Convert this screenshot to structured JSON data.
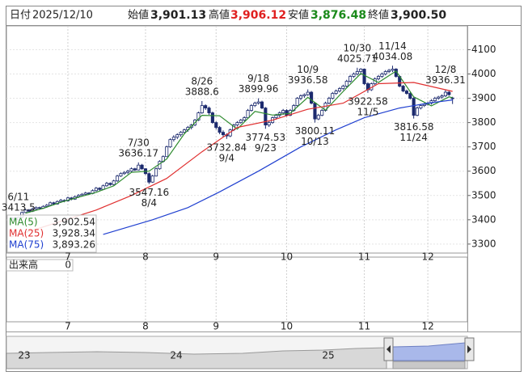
{
  "chart_data": {
    "type": "candlestick",
    "header": {
      "date_label": "日付",
      "date": "2025/12/10",
      "open_label": "始値",
      "open": "3,901.13",
      "high_label": "高値",
      "high": "3,906.12",
      "low_label": "安値",
      "low": "3,876.48",
      "close_label": "終値",
      "close": "3,900.50"
    },
    "up_color": "#ffffff",
    "down_color": "#1c2a6e",
    "candles": [
      [
        3405,
        3412,
        3398,
        3408
      ],
      [
        3408,
        3411,
        3396,
        3400
      ],
      [
        3400,
        3413.5,
        3397,
        3410
      ],
      [
        3410,
        3434,
        3406,
        3430
      ],
      [
        3430,
        3445,
        3428,
        3440
      ],
      [
        3440,
        3444,
        3430,
        3435
      ],
      [
        3435,
        3450,
        3432,
        3445
      ],
      [
        3445,
        3455,
        3440,
        3450
      ],
      [
        3450,
        3454,
        3442,
        3448
      ],
      [
        3448,
        3460,
        3445,
        3455
      ],
      [
        3455,
        3465,
        3450,
        3460
      ],
      [
        3460,
        3475,
        3456,
        3470
      ],
      [
        3470,
        3474,
        3460,
        3465
      ],
      [
        3465,
        3480,
        3462,
        3475
      ],
      [
        3475,
        3486,
        3470,
        3480
      ],
      [
        3480,
        3484,
        3472,
        3478
      ],
      [
        3478,
        3495,
        3475,
        3490
      ],
      [
        3490,
        3494,
        3480,
        3485
      ],
      [
        3485,
        3500,
        3482,
        3495
      ],
      [
        3495,
        3506,
        3490,
        3500
      ],
      [
        3500,
        3510,
        3496,
        3505
      ],
      [
        3505,
        3515,
        3500,
        3510
      ],
      [
        3510,
        3514,
        3502,
        3508
      ],
      [
        3508,
        3525,
        3505,
        3520
      ],
      [
        3520,
        3535,
        3516,
        3530
      ],
      [
        3530,
        3534,
        3520,
        3525
      ],
      [
        3525,
        3545,
        3522,
        3540
      ],
      [
        3540,
        3556,
        3536,
        3550
      ],
      [
        3550,
        3554,
        3540,
        3545
      ],
      [
        3545,
        3565,
        3542,
        3560
      ],
      [
        3560,
        3585,
        3556,
        3580
      ],
      [
        3580,
        3595,
        3576,
        3590
      ],
      [
        3590,
        3600,
        3585,
        3595
      ],
      [
        3595,
        3606,
        3588,
        3600
      ],
      [
        3600,
        3615,
        3596,
        3610
      ],
      [
        3610,
        3614,
        3600,
        3605
      ],
      [
        3605,
        3636.17,
        3602,
        3625
      ],
      [
        3625,
        3630,
        3605,
        3610
      ],
      [
        3610,
        3612,
        3585,
        3590
      ],
      [
        3590,
        3595,
        3547.16,
        3555
      ],
      [
        3555,
        3585,
        3552,
        3580
      ],
      [
        3580,
        3615,
        3578,
        3610
      ],
      [
        3610,
        3645,
        3606,
        3640
      ],
      [
        3640,
        3665,
        3635,
        3660
      ],
      [
        3660,
        3705,
        3658,
        3700
      ],
      [
        3700,
        3735,
        3696,
        3730
      ],
      [
        3730,
        3748,
        3722,
        3740
      ],
      [
        3740,
        3756,
        3732,
        3750
      ],
      [
        3750,
        3765,
        3742,
        3760
      ],
      [
        3760,
        3775,
        3752,
        3770
      ],
      [
        3770,
        3786,
        3762,
        3780
      ],
      [
        3780,
        3795,
        3772,
        3790
      ],
      [
        3790,
        3815,
        3785,
        3810
      ],
      [
        3810,
        3845,
        3806,
        3840
      ],
      [
        3840,
        3888.6,
        3836,
        3870
      ],
      [
        3870,
        3875,
        3852,
        3860
      ],
      [
        3860,
        3866,
        3832,
        3840
      ],
      [
        3840,
        3845,
        3795,
        3800
      ],
      [
        3800,
        3805,
        3772,
        3780
      ],
      [
        3780,
        3786,
        3752,
        3760
      ],
      [
        3760,
        3768,
        3740,
        3750
      ],
      [
        3750,
        3756,
        3732.84,
        3745
      ],
      [
        3745,
        3775,
        3740,
        3770
      ],
      [
        3770,
        3795,
        3765,
        3790
      ],
      [
        3790,
        3806,
        3784,
        3800
      ],
      [
        3800,
        3815,
        3795,
        3810
      ],
      [
        3810,
        3826,
        3804,
        3820
      ],
      [
        3820,
        3856,
        3816,
        3850
      ],
      [
        3850,
        3876,
        3845,
        3870
      ],
      [
        3870,
        3886,
        3864,
        3880
      ],
      [
        3880,
        3899.96,
        3874,
        3885
      ],
      [
        3885,
        3890,
        3855,
        3860
      ],
      [
        3860,
        3864,
        3774.53,
        3790
      ],
      [
        3790,
        3806,
        3782,
        3800
      ],
      [
        3800,
        3825,
        3795,
        3820
      ],
      [
        3820,
        3836,
        3812,
        3830
      ],
      [
        3830,
        3846,
        3822,
        3840
      ],
      [
        3840,
        3856,
        3832,
        3850
      ],
      [
        3850,
        3855,
        3825,
        3830
      ],
      [
        3830,
        3856,
        3826,
        3850
      ],
      [
        3850,
        3876,
        3845,
        3870
      ],
      [
        3870,
        3905,
        3866,
        3900
      ],
      [
        3900,
        3916,
        3892,
        3910
      ],
      [
        3910,
        3920,
        3902,
        3915
      ],
      [
        3915,
        3936.58,
        3910,
        3925
      ],
      [
        3925,
        3930,
        3875,
        3880
      ],
      [
        3880,
        3885,
        3800.11,
        3815
      ],
      [
        3815,
        3836,
        3810,
        3830
      ],
      [
        3830,
        3856,
        3826,
        3850
      ],
      [
        3850,
        3886,
        3845,
        3880
      ],
      [
        3880,
        3906,
        3875,
        3900
      ],
      [
        3900,
        3926,
        3895,
        3920
      ],
      [
        3920,
        3936,
        3914,
        3930
      ],
      [
        3930,
        3946,
        3924,
        3940
      ],
      [
        3940,
        3956,
        3934,
        3950
      ],
      [
        3950,
        3976,
        3944,
        3970
      ],
      [
        3970,
        3996,
        3964,
        3990
      ],
      [
        3990,
        4006,
        3984,
        4000
      ],
      [
        4000,
        4025.71,
        3994,
        4010
      ],
      [
        4010,
        4024,
        3996,
        4020
      ],
      [
        4020,
        4022,
        3955,
        3960
      ],
      [
        3960,
        3966,
        3922.58,
        3935
      ],
      [
        3935,
        3965,
        3930,
        3960
      ],
      [
        3960,
        3986,
        3954,
        3980
      ],
      [
        3980,
        3996,
        3974,
        3990
      ],
      [
        3990,
        4006,
        3984,
        4000
      ],
      [
        4000,
        4016,
        3994,
        4010
      ],
      [
        4010,
        4021,
        4004,
        4015
      ],
      [
        4015,
        4034.08,
        4008,
        4020
      ],
      [
        4020,
        4024,
        3985,
        3990
      ],
      [
        3990,
        3994,
        3945,
        3950
      ],
      [
        3950,
        3955,
        3925,
        3930
      ],
      [
        3930,
        3936,
        3915,
        3920
      ],
      [
        3920,
        3926,
        3895,
        3900
      ],
      [
        3900,
        3905,
        3816.58,
        3830
      ],
      [
        3830,
        3866,
        3826,
        3860
      ],
      [
        3860,
        3876,
        3854,
        3870
      ],
      [
        3870,
        3880,
        3864,
        3875
      ],
      [
        3875,
        3886,
        3870,
        3880
      ],
      [
        3880,
        3896,
        3874,
        3890
      ],
      [
        3890,
        3906,
        3884,
        3900
      ],
      [
        3900,
        3910,
        3894,
        3905
      ],
      [
        3905,
        3916,
        3898,
        3910
      ],
      [
        3910,
        3936.31,
        3905,
        3925
      ],
      [
        3925,
        3930,
        3910,
        3915
      ],
      [
        3901.13,
        3906.12,
        3876.48,
        3900.5
      ]
    ],
    "series": [
      {
        "name": "MA(5)",
        "color": "#2e8b2e",
        "legend_value": "3,902.54",
        "x": [
          4,
          9,
          14,
          19,
          24,
          29,
          34,
          39,
          44,
          49,
          54,
          59,
          64,
          69,
          74,
          79,
          84,
          89,
          94,
          99,
          104,
          109,
          114,
          119,
          124,
          125
        ],
        "values": [
          3427,
          3447,
          3472,
          3493,
          3513,
          3540,
          3595,
          3600,
          3650,
          3754,
          3830,
          3828,
          3773,
          3846,
          3831,
          3838,
          3904,
          3851,
          3928,
          4002,
          3965,
          4012,
          3906,
          3869,
          3906,
          3902.54
        ]
      },
      {
        "name": "MA(25)",
        "color": "#e03030",
        "legend_value": "3,928.34",
        "x": [
          0,
          10,
          24,
          34,
          44,
          54,
          64,
          74,
          84,
          94,
          104,
          114,
          125
        ],
        "values": [
          3330,
          3375,
          3440,
          3500,
          3570,
          3680,
          3780,
          3810,
          3855,
          3880,
          3960,
          3965,
          3928.34
        ]
      },
      {
        "name": "MA(75)",
        "color": "#2040d0",
        "legend_value": "3,893.26",
        "x": [
          26,
          40,
          50,
          59,
          70,
          82,
          92,
          100,
          110,
          118,
          125
        ],
        "values": [
          3340,
          3400,
          3450,
          3515,
          3600,
          3700,
          3770,
          3820,
          3860,
          3880,
          3893.26
        ]
      }
    ],
    "annotations": [
      {
        "date": "6/11",
        "value": 3413.5,
        "x": 2
      },
      {
        "date": "7/30",
        "value": 3636.17,
        "x": 36
      },
      {
        "date": "8/4",
        "value": 3547.16,
        "x": 39
      },
      {
        "date": "8/26",
        "value": 3888.6,
        "x": 54
      },
      {
        "date": "9/4",
        "value": 3732.84,
        "x": 61
      },
      {
        "date": "9/18",
        "value": 3899.96,
        "x": 70
      },
      {
        "date": "9/23",
        "value": 3774.53,
        "x": 72
      },
      {
        "date": "10/9",
        "value": 3936.58,
        "x": 84
      },
      {
        "date": "10/13",
        "value": 3800.11,
        "x": 86
      },
      {
        "date": "10/30",
        "value": 4025.71,
        "x": 98
      },
      {
        "date": "11/5",
        "value": 3922.58,
        "x": 101
      },
      {
        "date": "11/14",
        "value": 4034.08,
        "x": 108
      },
      {
        "date": "11/24",
        "value": 3816.58,
        "x": 114
      },
      {
        "date": "12/8",
        "value": 3936.31,
        "x": 123
      }
    ],
    "xlim": [
      -1.4,
      129.2
    ],
    "xticks": [
      {
        "value": 16,
        "label": "7"
      },
      {
        "value": 38,
        "label": "8"
      },
      {
        "value": 58,
        "label": "9"
      },
      {
        "value": 78,
        "label": "10"
      },
      {
        "value": 100,
        "label": "11"
      },
      {
        "value": 118,
        "label": "12"
      }
    ],
    "ylim": [
      3263,
      4198
    ],
    "yticks": [
      3300,
      3400,
      3500,
      3600,
      3700,
      3800,
      3900,
      4000,
      4100
    ],
    "grid": true,
    "volume": {
      "label": "出来高",
      "value": 0
    },
    "navigator": {
      "labels": [
        "23",
        "24",
        "25"
      ]
    }
  }
}
